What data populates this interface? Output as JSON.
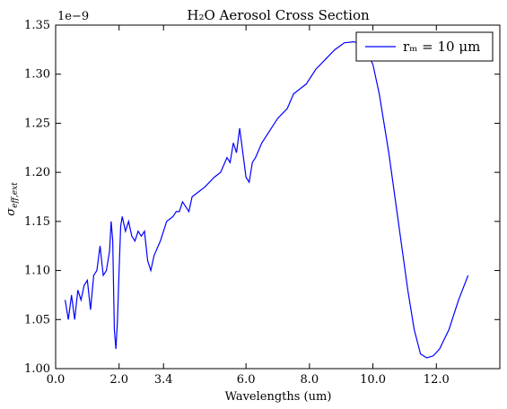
{
  "chart_data": {
    "type": "line",
    "title": "H₂O Aerosol Cross Section",
    "x_label": "Wavelengths (um)",
    "y_label": {
      "symbol": "σ",
      "subscript": "eff,ext"
    },
    "y_offset_label": "1e−9",
    "xlim": [
      0,
      14
    ],
    "ylim": [
      1.0,
      1.35
    ],
    "xticks": [
      {
        "value": 0,
        "label": "0.0"
      },
      {
        "value": 2,
        "label": "2.0"
      },
      {
        "value": 3.4,
        "label": "3.4"
      },
      {
        "value": 6,
        "label": "6.0"
      },
      {
        "value": 8,
        "label": "8.0"
      },
      {
        "value": 10,
        "label": "10.0"
      },
      {
        "value": 12,
        "label": "12.0"
      }
    ],
    "yticks": [
      {
        "value": 1.0,
        "label": "1.00"
      },
      {
        "value": 1.05,
        "label": "1.05"
      },
      {
        "value": 1.1,
        "label": "1.10"
      },
      {
        "value": 1.15,
        "label": "1.15"
      },
      {
        "value": 1.2,
        "label": "1.20"
      },
      {
        "value": 1.25,
        "label": "1.25"
      },
      {
        "value": 1.3,
        "label": "1.30"
      },
      {
        "value": 1.35,
        "label": "1.35"
      }
    ],
    "legend": "upper right",
    "x": [
      0.3,
      0.4,
      0.5,
      0.6,
      0.7,
      0.8,
      0.9,
      1.0,
      1.1,
      1.2,
      1.3,
      1.4,
      1.5,
      1.6,
      1.7,
      1.75,
      1.8,
      1.85,
      1.9,
      1.95,
      2.0,
      2.05,
      2.1,
      2.2,
      2.3,
      2.4,
      2.5,
      2.6,
      2.7,
      2.8,
      2.9,
      3.0,
      3.1,
      3.3,
      3.5,
      3.7,
      3.8,
      3.9,
      4.0,
      4.1,
      4.2,
      4.3,
      4.5,
      4.7,
      5.0,
      5.2,
      5.4,
      5.5,
      5.6,
      5.7,
      5.8,
      5.9,
      6.0,
      6.1,
      6.2,
      6.3,
      6.5,
      7.0,
      7.3,
      7.5,
      7.7,
      7.9,
      8.2,
      8.5,
      8.8,
      9.1,
      9.4,
      9.7,
      10.0,
      10.2,
      10.5,
      10.8,
      11.1,
      11.3,
      11.5,
      11.7,
      11.9,
      12.1,
      12.4,
      12.7,
      13.0
    ],
    "series": [
      {
        "name": "rₘ = 10 μm",
        "color": "#0000ff",
        "values": [
          1.07,
          1.05,
          1.075,
          1.05,
          1.08,
          1.07,
          1.085,
          1.09,
          1.06,
          1.095,
          1.1,
          1.125,
          1.095,
          1.1,
          1.12,
          1.15,
          1.13,
          1.04,
          1.02,
          1.05,
          1.1,
          1.145,
          1.155,
          1.14,
          1.15,
          1.135,
          1.13,
          1.14,
          1.135,
          1.14,
          1.11,
          1.1,
          1.115,
          1.13,
          1.15,
          1.155,
          1.16,
          1.16,
          1.17,
          1.165,
          1.16,
          1.175,
          1.18,
          1.185,
          1.195,
          1.2,
          1.215,
          1.21,
          1.23,
          1.22,
          1.245,
          1.22,
          1.195,
          1.19,
          1.21,
          1.215,
          1.23,
          1.255,
          1.265,
          1.28,
          1.285,
          1.29,
          1.305,
          1.315,
          1.325,
          1.332,
          1.333,
          1.33,
          1.31,
          1.28,
          1.22,
          1.15,
          1.08,
          1.04,
          1.015,
          1.011,
          1.013,
          1.02,
          1.04,
          1.07,
          1.095
        ]
      }
    ]
  }
}
